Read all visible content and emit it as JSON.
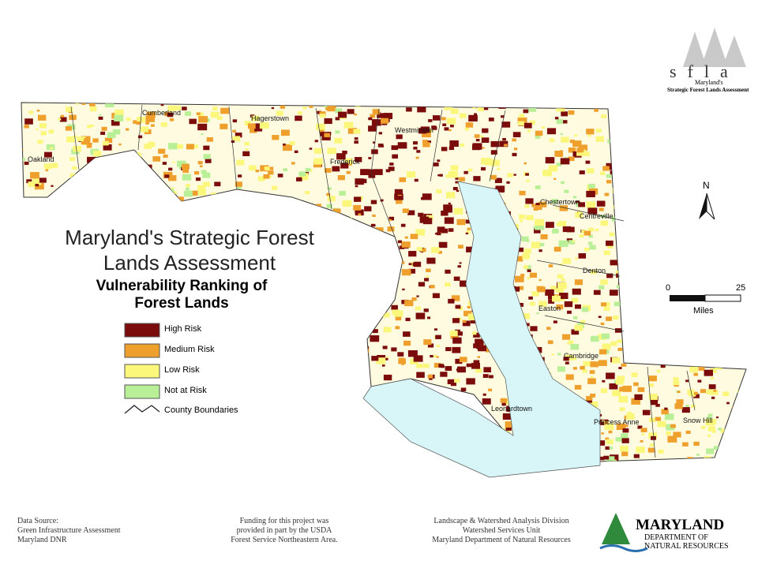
{
  "logo": {
    "acronym": "sfla",
    "state": "Maryland's",
    "name": "Strategic Forest Lands Assessment"
  },
  "title": "Maryland's Strategic Forest Lands Assessment",
  "subtitle": "Vulnerability Ranking of Forest Lands",
  "legend": [
    {
      "label": "High Risk",
      "color": "#7a0c0c"
    },
    {
      "label": "Medium Risk",
      "color": "#efa02c"
    },
    {
      "label": "Low Risk",
      "color": "#fbf77a"
    },
    {
      "label": "Not at Risk",
      "color": "#b9ef97"
    }
  ],
  "county_boundaries": "County Boundaries",
  "places": [
    "Cumberland",
    "Oakland",
    "Hagerstown",
    "Westminster",
    "Frederick",
    "Chestertown",
    "Centreville",
    "Denton",
    "Easton",
    "Cambridge",
    "Princess Anne",
    "Snow Hill",
    "Leonardtown"
  ],
  "north": "N",
  "scale": {
    "ticks": [
      0,
      25
    ],
    "unit": "Miles"
  },
  "footer": {
    "data_source": [
      "Data Source:",
      "Green Infrastructure Assessment",
      "Maryland DNR"
    ],
    "funding": [
      "Funding for this project was",
      "provided in part by the USDA",
      "Forest Service Northeastern Area."
    ],
    "division": [
      "Landscape & Watershed Analysis Division",
      "Watershed Services Unit",
      "Maryland Department of Natural Resources"
    ]
  },
  "agency_logo": {
    "name": "MARYLAND",
    "department": [
      "DEPARTMENT OF",
      "NATURAL RESOURCES"
    ]
  }
}
